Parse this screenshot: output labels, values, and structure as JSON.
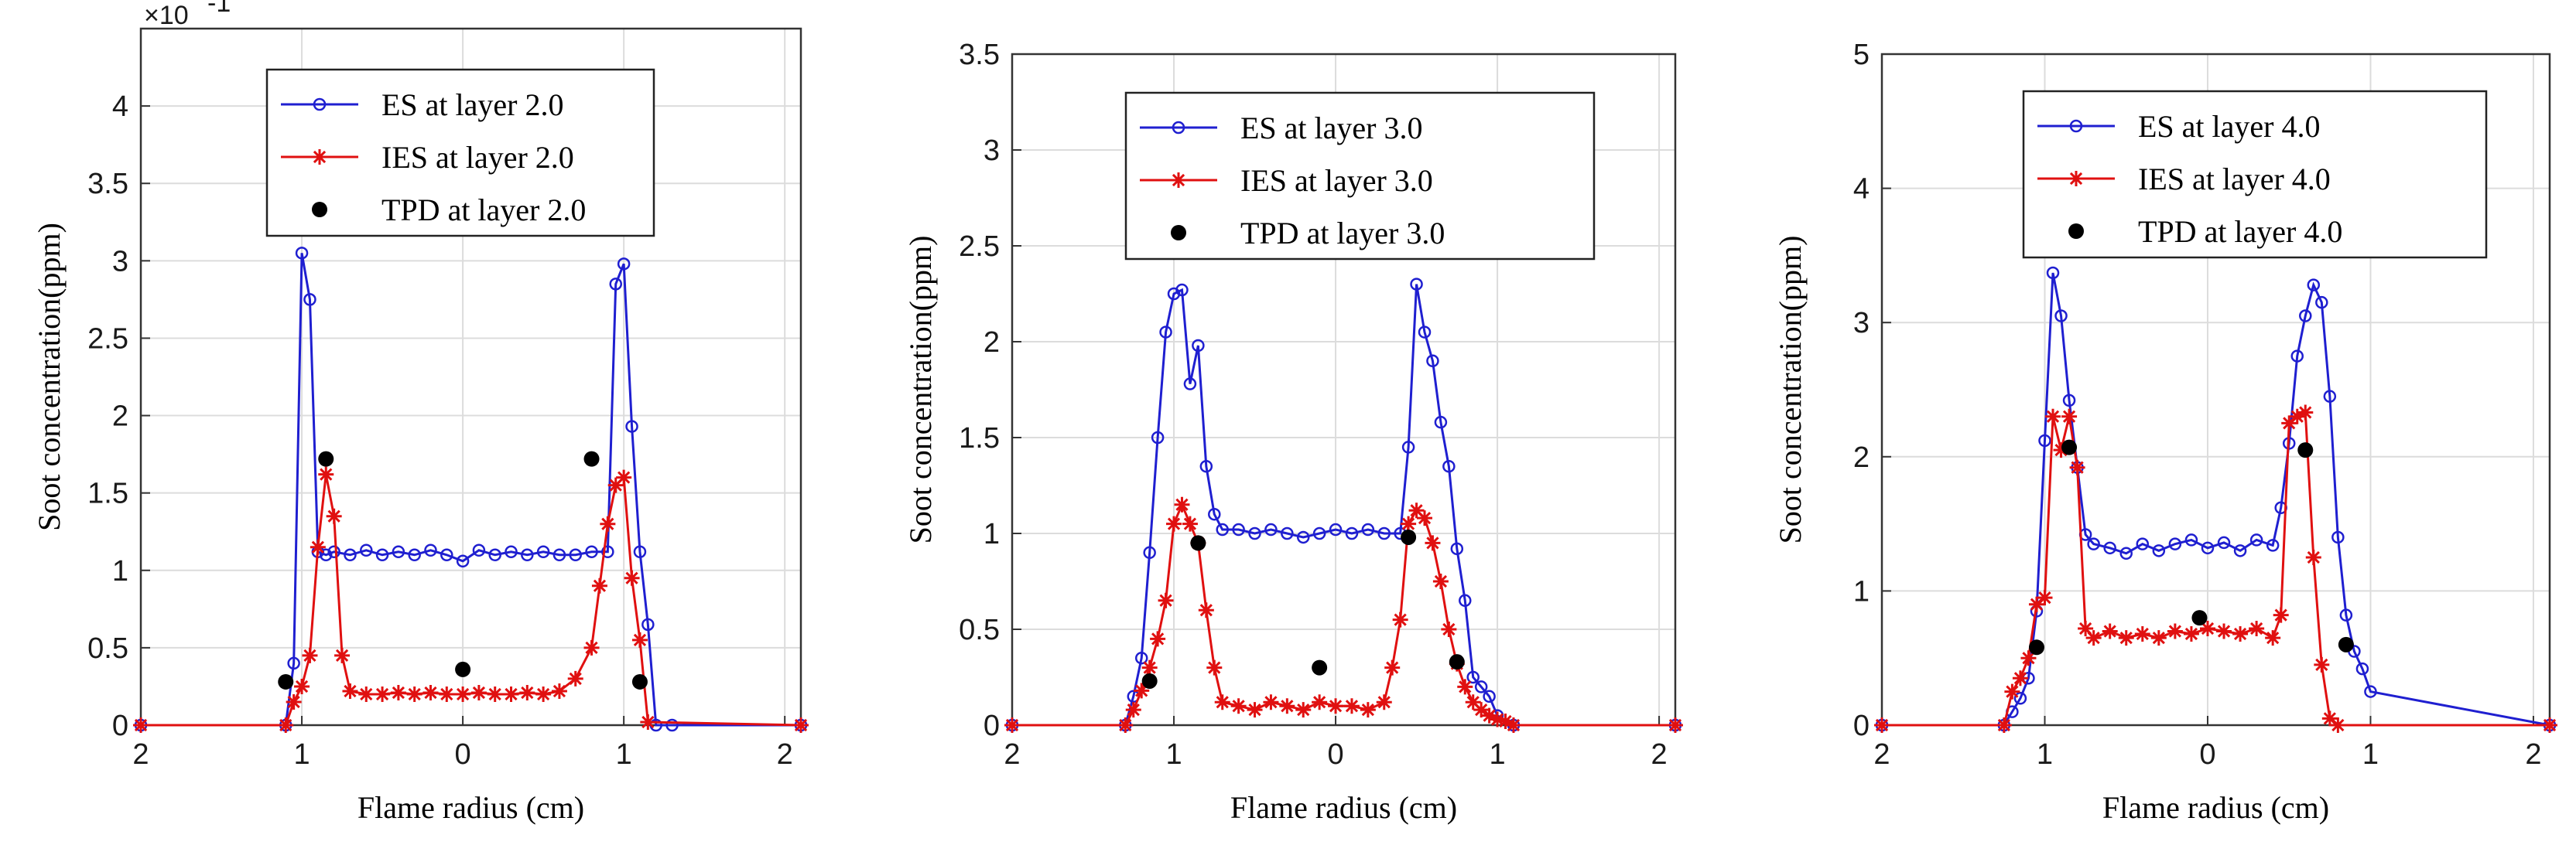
{
  "chart_data": [
    {
      "type": "line",
      "ylabel": "Soot concentration(ppm)",
      "xlabel": "Flame radius (cm)",
      "xlim": [
        -2,
        2.1
      ],
      "ylim": [
        0,
        4.5
      ],
      "xtick_values": [
        -2,
        -1,
        0,
        1,
        2
      ],
      "xtick_labels": [
        "2",
        "1",
        "0",
        "1",
        "2"
      ],
      "ytick_values": [
        0,
        0.5,
        1,
        1.5,
        2,
        2.5,
        3,
        3.5,
        4
      ],
      "ytick_labels": [
        "0",
        "0.5",
        "1",
        "1.5",
        "2",
        "2.5",
        "3",
        "3.5",
        "4"
      ],
      "y_exponent": {
        "base": "×10",
        "power": "-1"
      },
      "grid": true,
      "legend_position": "top-center",
      "series": [
        {
          "name": "ES at layer 2.0",
          "color": "#1f1fd0",
          "marker": "circle",
          "x": [
            -2,
            -1.1,
            -1.05,
            -1.0,
            -0.95,
            -0.9,
            -0.85,
            -0.8,
            -0.7,
            -0.6,
            -0.5,
            -0.4,
            -0.3,
            -0.2,
            -0.1,
            0,
            0.1,
            0.2,
            0.3,
            0.4,
            0.5,
            0.6,
            0.7,
            0.8,
            0.9,
            0.95,
            1.0,
            1.05,
            1.1,
            1.15,
            1.2,
            1.3,
            2.1
          ],
          "y": [
            0,
            0,
            0.4,
            3.05,
            2.75,
            1.12,
            1.1,
            1.12,
            1.1,
            1.13,
            1.1,
            1.12,
            1.1,
            1.13,
            1.1,
            1.06,
            1.13,
            1.1,
            1.12,
            1.1,
            1.12,
            1.1,
            1.1,
            1.12,
            1.12,
            2.85,
            2.98,
            1.93,
            1.12,
            0.65,
            0,
            0,
            0
          ]
        },
        {
          "name": "IES at layer 2.0",
          "color": "#e01010",
          "marker": "star",
          "x": [
            -2,
            -1.1,
            -1.05,
            -1.0,
            -0.95,
            -0.9,
            -0.85,
            -0.8,
            -0.75,
            -0.7,
            -0.6,
            -0.5,
            -0.4,
            -0.3,
            -0.2,
            -0.1,
            0,
            0.1,
            0.2,
            0.3,
            0.4,
            0.5,
            0.6,
            0.7,
            0.8,
            0.85,
            0.9,
            0.95,
            1.0,
            1.05,
            1.1,
            1.15,
            2.1
          ],
          "y": [
            0,
            0,
            0.15,
            0.25,
            0.45,
            1.15,
            1.62,
            1.35,
            0.45,
            0.22,
            0.2,
            0.2,
            0.21,
            0.2,
            0.21,
            0.2,
            0.2,
            0.21,
            0.2,
            0.2,
            0.21,
            0.2,
            0.22,
            0.3,
            0.5,
            0.9,
            1.3,
            1.55,
            1.6,
            0.95,
            0.55,
            0.02,
            0
          ]
        },
        {
          "name": "TPD at layer 2.0",
          "color": "#000000",
          "marker": "dot",
          "x": [
            -1.1,
            -0.85,
            0,
            0.8,
            1.1
          ],
          "y": [
            0.28,
            1.72,
            0.36,
            1.72,
            0.28
          ]
        }
      ]
    },
    {
      "type": "line",
      "ylabel": "Soot concentration(ppm)",
      "xlabel": "Flame radius (cm)",
      "xlim": [
        -2,
        2.1
      ],
      "ylim": [
        0,
        3.5
      ],
      "xtick_values": [
        -2,
        -1,
        0,
        1,
        2
      ],
      "xtick_labels": [
        "2",
        "1",
        "0",
        "1",
        "2"
      ],
      "ytick_values": [
        0,
        0.5,
        1,
        1.5,
        2,
        2.5,
        3,
        3.5
      ],
      "ytick_labels": [
        "0",
        "0.5",
        "1",
        "1.5",
        "2",
        "2.5",
        "3",
        "3.5"
      ],
      "grid": true,
      "legend_position": "top-center",
      "series": [
        {
          "name": "ES at layer 3.0",
          "color": "#1f1fd0",
          "marker": "circle",
          "x": [
            -2,
            -1.3,
            -1.25,
            -1.2,
            -1.15,
            -1.1,
            -1.05,
            -1.0,
            -0.95,
            -0.9,
            -0.85,
            -0.8,
            -0.75,
            -0.7,
            -0.6,
            -0.5,
            -0.4,
            -0.3,
            -0.2,
            -0.1,
            0,
            0.1,
            0.2,
            0.3,
            0.4,
            0.45,
            0.5,
            0.55,
            0.6,
            0.65,
            0.7,
            0.75,
            0.8,
            0.85,
            0.9,
            0.95,
            1.0,
            1.1,
            2.1
          ],
          "y": [
            0,
            0,
            0.15,
            0.35,
            0.9,
            1.5,
            2.05,
            2.25,
            2.27,
            1.78,
            1.98,
            1.35,
            1.1,
            1.02,
            1.02,
            1.0,
            1.02,
            1.0,
            0.98,
            1.0,
            1.02,
            1.0,
            1.02,
            1.0,
            1.0,
            1.45,
            2.3,
            2.05,
            1.9,
            1.58,
            1.35,
            0.92,
            0.65,
            0.25,
            0.2,
            0.15,
            0.05,
            0,
            0
          ]
        },
        {
          "name": "IES at layer 3.0",
          "color": "#e01010",
          "marker": "star",
          "x": [
            -2,
            -1.3,
            -1.25,
            -1.2,
            -1.15,
            -1.1,
            -1.05,
            -1.0,
            -0.95,
            -0.9,
            -0.85,
            -0.8,
            -0.75,
            -0.7,
            -0.6,
            -0.5,
            -0.4,
            -0.3,
            -0.2,
            -0.1,
            0,
            0.1,
            0.2,
            0.3,
            0.35,
            0.4,
            0.45,
            0.5,
            0.55,
            0.6,
            0.65,
            0.7,
            0.75,
            0.8,
            0.85,
            0.9,
            0.95,
            1.0,
            1.05,
            1.1,
            2.1
          ],
          "y": [
            0,
            0,
            0.08,
            0.18,
            0.3,
            0.45,
            0.65,
            1.05,
            1.15,
            1.05,
            0.95,
            0.6,
            0.3,
            0.12,
            0.1,
            0.08,
            0.12,
            0.1,
            0.08,
            0.12,
            0.1,
            0.1,
            0.08,
            0.12,
            0.3,
            0.55,
            1.05,
            1.12,
            1.08,
            0.95,
            0.75,
            0.5,
            0.32,
            0.2,
            0.12,
            0.08,
            0.05,
            0.03,
            0.02,
            0,
            0
          ]
        },
        {
          "name": "TPD at layer 3.0",
          "color": "#000000",
          "marker": "dot",
          "x": [
            -1.15,
            -0.85,
            -0.1,
            0.45,
            0.75
          ],
          "y": [
            0.23,
            0.95,
            0.3,
            0.98,
            0.33
          ]
        }
      ]
    },
    {
      "type": "line",
      "ylabel": "Soot concentration(ppm)",
      "xlabel": "Flame radius (cm)",
      "xlim": [
        -2,
        2.1
      ],
      "ylim": [
        0,
        5
      ],
      "xtick_values": [
        -2,
        -1,
        0,
        1,
        2
      ],
      "xtick_labels": [
        "2",
        "1",
        "0",
        "1",
        "2"
      ],
      "ytick_values": [
        0,
        1,
        2,
        3,
        4,
        5
      ],
      "ytick_labels": [
        "0",
        "1",
        "2",
        "3",
        "4",
        "5"
      ],
      "grid": true,
      "legend_position": "top-center",
      "series": [
        {
          "name": "ES at layer 4.0",
          "color": "#1f1fd0",
          "marker": "circle",
          "x": [
            -2,
            -1.25,
            -1.2,
            -1.15,
            -1.1,
            -1.05,
            -1.0,
            -0.95,
            -0.9,
            -0.85,
            -0.8,
            -0.75,
            -0.7,
            -0.6,
            -0.5,
            -0.4,
            -0.3,
            -0.2,
            -0.1,
            0,
            0.1,
            0.2,
            0.3,
            0.4,
            0.45,
            0.5,
            0.55,
            0.6,
            0.65,
            0.7,
            0.75,
            0.8,
            0.85,
            0.9,
            0.95,
            1.0,
            2.1
          ],
          "y": [
            0,
            0,
            0.1,
            0.2,
            0.35,
            0.85,
            2.12,
            3.37,
            3.05,
            2.42,
            1.92,
            1.42,
            1.35,
            1.32,
            1.28,
            1.35,
            1.3,
            1.35,
            1.38,
            1.32,
            1.36,
            1.3,
            1.38,
            1.34,
            1.62,
            2.1,
            2.75,
            3.05,
            3.28,
            3.15,
            2.45,
            1.4,
            0.82,
            0.55,
            0.42,
            0.25,
            0
          ]
        },
        {
          "name": "IES at layer 4.0",
          "color": "#e01010",
          "marker": "star",
          "x": [
            -2,
            -1.25,
            -1.2,
            -1.15,
            -1.1,
            -1.05,
            -1.0,
            -0.95,
            -0.9,
            -0.85,
            -0.8,
            -0.75,
            -0.7,
            -0.6,
            -0.5,
            -0.4,
            -0.3,
            -0.2,
            -0.1,
            0,
            0.1,
            0.2,
            0.3,
            0.4,
            0.45,
            0.5,
            0.55,
            0.6,
            0.65,
            0.7,
            0.75,
            0.8,
            2.1
          ],
          "y": [
            0,
            0,
            0.25,
            0.35,
            0.5,
            0.9,
            0.95,
            2.3,
            2.05,
            2.3,
            1.92,
            0.72,
            0.65,
            0.7,
            0.65,
            0.68,
            0.65,
            0.7,
            0.68,
            0.72,
            0.7,
            0.68,
            0.72,
            0.65,
            0.82,
            2.25,
            2.3,
            2.33,
            1.25,
            0.45,
            0.05,
            0,
            0
          ]
        },
        {
          "name": "TPD at layer 4.0",
          "color": "#000000",
          "marker": "dot",
          "x": [
            -1.05,
            -0.85,
            -0.05,
            0.6,
            0.85
          ],
          "y": [
            0.58,
            2.07,
            0.8,
            2.05,
            0.6
          ]
        }
      ]
    }
  ]
}
